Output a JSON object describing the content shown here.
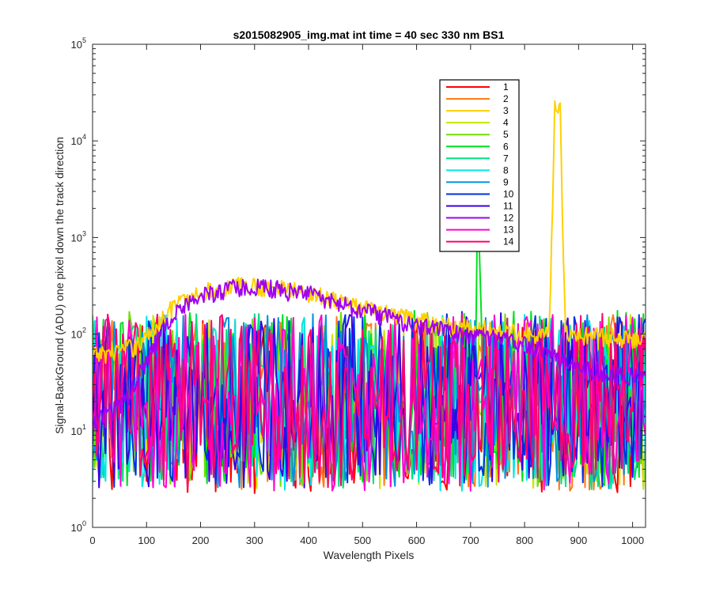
{
  "chart_data": {
    "type": "line",
    "title": "s2015082905_img.mat int time = 40 sec  330 nm BS1",
    "xlabel": "Wavelength Pixels",
    "ylabel": "Signal-BackGround (ADU) one pixel down the track direction",
    "xlim": [
      0,
      1024
    ],
    "ylim": [
      1,
      100000
    ],
    "yscale": "log",
    "x_ticks": [
      "0",
      "100",
      "200",
      "300",
      "400",
      "500",
      "600",
      "700",
      "800",
      "900",
      "1000"
    ],
    "y_ticks": [
      {
        "base": "10",
        "exp": "0"
      },
      {
        "base": "10",
        "exp": "1"
      },
      {
        "base": "10",
        "exp": "2"
      },
      {
        "base": "10",
        "exp": "3"
      },
      {
        "base": "10",
        "exp": "4"
      },
      {
        "base": "10",
        "exp": "5"
      }
    ],
    "grid": false,
    "legend_position": "top-right (inside)",
    "series": [
      {
        "name": "1",
        "color": "#ff0000",
        "kind": "noise",
        "level": 22
      },
      {
        "name": "2",
        "color": "#ff7a1a",
        "kind": "noise",
        "level": 24
      },
      {
        "name": "3",
        "color": "#ffd000",
        "kind": "spectrum",
        "envelope": [
          [
            0,
            60
          ],
          [
            80,
            75
          ],
          [
            110,
            110
          ],
          [
            150,
            200
          ],
          [
            200,
            270
          ],
          [
            260,
            320
          ],
          [
            300,
            320
          ],
          [
            350,
            300
          ],
          [
            400,
            270
          ],
          [
            450,
            230
          ],
          [
            500,
            190
          ],
          [
            550,
            160
          ],
          [
            600,
            140
          ],
          [
            650,
            125
          ],
          [
            700,
            115
          ],
          [
            750,
            110
          ],
          [
            800,
            100
          ],
          [
            845,
            100
          ],
          [
            852,
            2000
          ],
          [
            856,
            22000
          ],
          [
            866,
            24000
          ],
          [
            870,
            2000
          ],
          [
            876,
            100
          ],
          [
            950,
            95
          ],
          [
            1024,
            90
          ]
        ]
      },
      {
        "name": "4",
        "color": "#c8e600",
        "kind": "noise",
        "level": 25
      },
      {
        "name": "5",
        "color": "#70e000",
        "kind": "noise",
        "level": 26
      },
      {
        "name": "6",
        "color": "#00e01e",
        "kind": "noise",
        "level": 27,
        "spike": {
          "x": 715,
          "y": 800
        }
      },
      {
        "name": "7",
        "color": "#00e080",
        "kind": "noise",
        "level": 25
      },
      {
        "name": "8",
        "color": "#00e6e6",
        "kind": "noise",
        "level": 24
      },
      {
        "name": "9",
        "color": "#0090e0",
        "kind": "noise",
        "level": 25
      },
      {
        "name": "10",
        "color": "#0030e0",
        "kind": "noise",
        "level": 26
      },
      {
        "name": "11",
        "color": "#3a00e6",
        "kind": "noise",
        "level": 25
      },
      {
        "name": "12",
        "color": "#a000f0",
        "kind": "spectrum",
        "envelope": [
          [
            0,
            12
          ],
          [
            60,
            20
          ],
          [
            110,
            70
          ],
          [
            150,
            170
          ],
          [
            200,
            250
          ],
          [
            260,
            300
          ],
          [
            300,
            310
          ],
          [
            350,
            290
          ],
          [
            400,
            260
          ],
          [
            450,
            220
          ],
          [
            500,
            180
          ],
          [
            550,
            150
          ],
          [
            600,
            125
          ],
          [
            650,
            110
          ],
          [
            700,
            95
          ],
          [
            750,
            90
          ],
          [
            800,
            80
          ],
          [
            850,
            60
          ],
          [
            900,
            45
          ],
          [
            960,
            40
          ],
          [
            1024,
            35
          ]
        ]
      },
      {
        "name": "13",
        "color": "#ff00d0",
        "kind": "noise",
        "level": 24
      },
      {
        "name": "14",
        "color": "#ff0070",
        "kind": "noise",
        "level": 25
      }
    ]
  }
}
